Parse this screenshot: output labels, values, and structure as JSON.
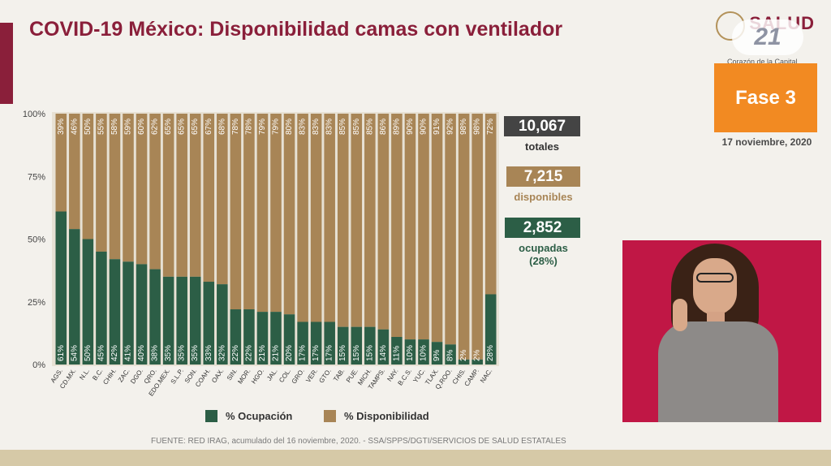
{
  "title": "COVID-19 México: Disponibilidad camas con ventilador",
  "logo": {
    "brand": "SALUD",
    "channel": "21",
    "tagline": "Corazón de la Capital"
  },
  "phase": "Fase 3",
  "date": "17 noviembre, 2020",
  "stats": {
    "total_value": "10,067",
    "total_label": "totales",
    "available_value": "7,215",
    "available_label": "disponibles",
    "occupied_value": "2,852",
    "occupied_label": "ocupadas",
    "occupied_pct": "(28%)"
  },
  "legend": {
    "occupied": "% Ocupación",
    "available": "% Disponibilidad"
  },
  "source": "FUENTE: RED IRAG, acumulado del 16 noviembre, 2020. - SSA/SPPS/DGTI/SERVICIOS DE SALUD ESTATALES",
  "colors": {
    "occupied": "#2c5e46",
    "available": "#a88556",
    "brand": "#8a1f3a",
    "phase": "#f28a22",
    "total_box": "#444444"
  },
  "chart_data": {
    "type": "bar",
    "stacked": true,
    "categories": [
      "AGS.",
      "CD.MX.",
      "N.L.",
      "B.C.",
      "CHIH.",
      "ZAC.",
      "DGO.",
      "QRO.",
      "EDO.MEX.",
      "S.L.P.",
      "SON.",
      "COAH.",
      "OAX.",
      "SIN.",
      "MOR.",
      "HGO.",
      "JAL.",
      "COL.",
      "GRO.",
      "VER.",
      "GTO.",
      "TAB.",
      "PUE.",
      "MICH.",
      "TAMPS.",
      "NAY.",
      "B.C.S.",
      "YUC.",
      "TLAX.",
      "Q.ROO.",
      "CHIS.",
      "CAMP.",
      "NAC."
    ],
    "series": [
      {
        "name": "% Ocupación",
        "values": [
          61,
          54,
          50,
          45,
          42,
          41,
          40,
          38,
          35,
          35,
          35,
          33,
          32,
          22,
          22,
          21,
          21,
          20,
          17,
          17,
          17,
          15,
          15,
          15,
          14,
          11,
          10,
          10,
          9,
          8,
          2,
          2,
          28
        ]
      },
      {
        "name": "% Disponibilidad",
        "values": [
          39,
          46,
          50,
          55,
          58,
          59,
          60,
          62,
          65,
          65,
          65,
          67,
          68,
          78,
          78,
          79,
          79,
          80,
          83,
          83,
          83,
          85,
          85,
          85,
          86,
          89,
          90,
          90,
          91,
          92,
          98,
          98,
          72
        ]
      }
    ],
    "yticks": [
      "0%",
      "25%",
      "50%",
      "75%",
      "100%"
    ],
    "ylim": [
      0,
      100
    ],
    "legend_position": "bottom"
  }
}
